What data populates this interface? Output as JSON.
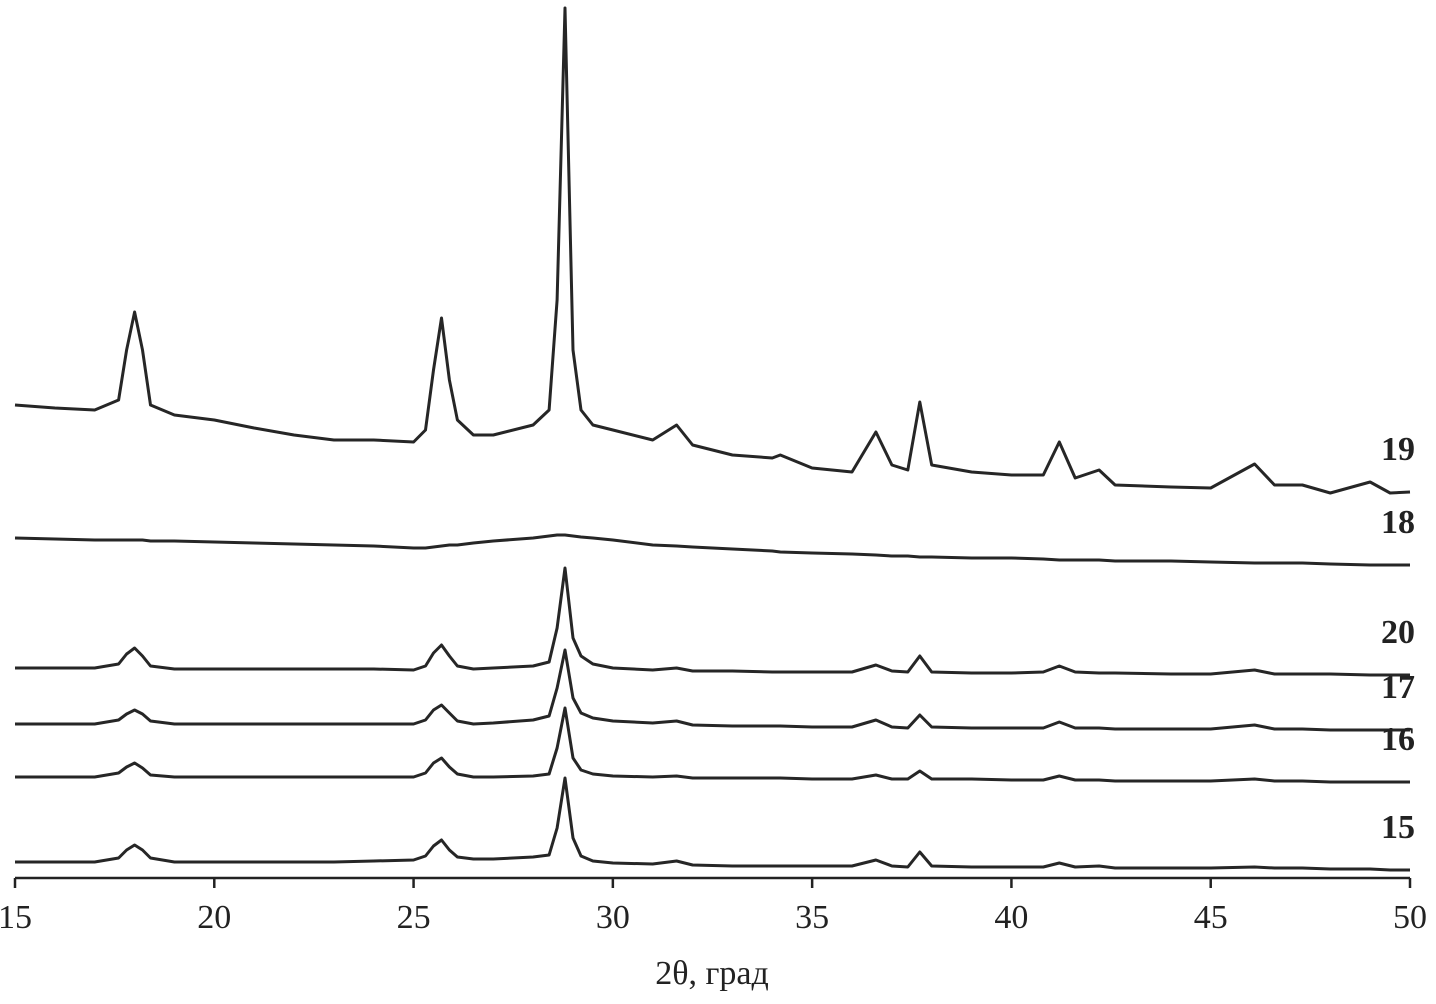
{
  "chart_data": {
    "type": "line",
    "x_label": "2θ, град",
    "x": [
      15,
      16,
      17,
      17.6,
      17.8,
      18.0,
      18.2,
      18.4,
      19,
      20,
      21,
      22,
      23,
      24,
      25,
      25.3,
      25.5,
      25.7,
      25.9,
      26.1,
      26.5,
      27,
      28,
      28.4,
      28.6,
      28.8,
      29.0,
      29.2,
      29.5,
      30,
      31,
      31.6,
      32,
      33,
      34,
      34.2,
      35,
      36,
      36.6,
      37,
      37.4,
      37.7,
      38,
      39,
      40,
      40.8,
      41.2,
      41.6,
      42.2,
      42.6,
      44,
      45,
      46.1,
      46.6,
      47.3,
      48,
      49,
      49.5,
      50
    ],
    "series": [
      {
        "name": "19",
        "color": "#262626",
        "values": [
          473,
          470,
          468,
          478,
          528,
          566,
          528,
          473,
          463,
          458,
          450,
          443,
          438,
          438,
          436,
          448,
          508,
          560,
          498,
          458,
          443,
          443,
          453,
          468,
          578,
          870,
          528,
          468,
          453,
          448,
          438,
          453,
          433,
          423,
          420,
          423,
          410,
          406,
          446,
          413,
          408,
          476,
          413,
          406,
          403,
          403,
          436,
          400,
          408,
          393,
          391,
          390,
          414,
          393,
          393,
          385,
          396,
          385,
          386
        ]
      },
      {
        "name": "18",
        "color": "#262626",
        "values": [
          340,
          339,
          338,
          338,
          338,
          338,
          338,
          337,
          337,
          336,
          335,
          334,
          333,
          332,
          330,
          330,
          331,
          332,
          333,
          333,
          335,
          337,
          340,
          342,
          343,
          343,
          342,
          341,
          340,
          338,
          333,
          332,
          331,
          329,
          327,
          326,
          325,
          324,
          323,
          322,
          322,
          321,
          321,
          320,
          320,
          319,
          318,
          318,
          318,
          317,
          317,
          316,
          315,
          315,
          315,
          314,
          313,
          313,
          313
        ]
      },
      {
        "name": "20",
        "color": "#262626",
        "values": [
          210,
          210,
          210,
          214,
          224,
          230,
          222,
          212,
          209,
          209,
          209,
          209,
          209,
          209,
          208,
          212,
          225,
          233,
          222,
          212,
          209,
          210,
          212,
          216,
          250,
          310,
          240,
          222,
          214,
          210,
          208,
          210,
          207,
          207,
          206,
          206,
          206,
          206,
          213,
          207,
          206,
          222,
          206,
          205,
          205,
          206,
          212,
          206,
          205,
          205,
          204,
          204,
          208,
          204,
          204,
          204,
          203,
          203,
          203
        ]
      },
      {
        "name": "17",
        "color": "#262626",
        "values": [
          154,
          154,
          154,
          158,
          164,
          168,
          164,
          157,
          154,
          154,
          154,
          154,
          154,
          154,
          154,
          158,
          168,
          173,
          165,
          157,
          154,
          155,
          158,
          162,
          190,
          228,
          180,
          165,
          160,
          157,
          155,
          157,
          153,
          152,
          152,
          152,
          151,
          151,
          158,
          151,
          150,
          163,
          151,
          150,
          150,
          150,
          156,
          150,
          150,
          149,
          149,
          149,
          153,
          149,
          149,
          148,
          148,
          148,
          148
        ]
      },
      {
        "name": "16",
        "color": "#262626",
        "values": [
          101,
          101,
          101,
          105,
          111,
          115,
          110,
          103,
          101,
          101,
          101,
          101,
          101,
          101,
          101,
          105,
          115,
          120,
          111,
          104,
          101,
          101,
          102,
          104,
          130,
          170,
          120,
          108,
          104,
          102,
          101,
          102,
          100,
          100,
          100,
          100,
          99,
          99,
          103,
          99,
          99,
          107,
          99,
          99,
          98,
          98,
          102,
          98,
          98,
          97,
          97,
          97,
          99,
          97,
          97,
          96,
          96,
          96,
          96
        ]
      },
      {
        "name": "15",
        "color": "#262626",
        "values": [
          16,
          16,
          16,
          20,
          28,
          33,
          28,
          20,
          16,
          16,
          16,
          16,
          16,
          17,
          18,
          22,
          32,
          38,
          28,
          21,
          19,
          19,
          21,
          23,
          50,
          100,
          40,
          22,
          17,
          15,
          14,
          17,
          13,
          12,
          12,
          12,
          12,
          12,
          18,
          12,
          11,
          26,
          12,
          11,
          11,
          11,
          15,
          11,
          12,
          10,
          10,
          10,
          11,
          10,
          10,
          9,
          9,
          8,
          8
        ]
      }
    ],
    "xlim": [
      15,
      50
    ],
    "xticks": [
      15,
      20,
      25,
      30,
      35,
      40,
      45,
      50
    ],
    "ylim": [
      0,
      873
    ]
  }
}
